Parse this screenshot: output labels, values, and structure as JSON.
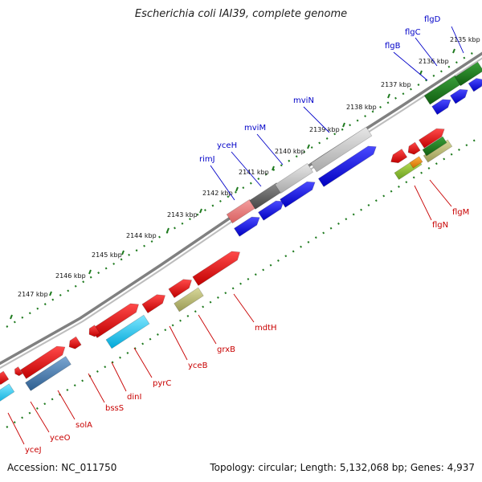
{
  "title": "Escherichia coli IAI39, complete genome",
  "footer": {
    "accession": "Accession: NC_011750",
    "summary": "Topology: circular; Length: 5,132,068 bp; Genes: 4,937"
  },
  "colors": {
    "label_top": "#0000c8",
    "label_bottom": "#c80000",
    "tick": "#1e7a1e",
    "backbone": "#808080"
  },
  "ticks": [
    "2135 kbp",
    "2136 kbp",
    "2137 kbp",
    "2138 kbp",
    "2139 kbp",
    "2140 kbp",
    "2141 kbp",
    "2142 kbp",
    "2143 kbp",
    "2144 kbp",
    "2145 kbp",
    "2146 kbp",
    "2147 kbp"
  ],
  "top_labels": [
    {
      "name": "flgD"
    },
    {
      "name": "flgC"
    },
    {
      "name": "flgB"
    },
    {
      "name": "mviN"
    },
    {
      "name": "mviM"
    },
    {
      "name": "yceH"
    },
    {
      "name": "rimJ"
    }
  ],
  "bottom_labels": [
    {
      "name": "flgM"
    },
    {
      "name": "flgN"
    },
    {
      "name": "mdtH"
    },
    {
      "name": "grxB"
    },
    {
      "name": "yceB"
    },
    {
      "name": "pyrC"
    },
    {
      "name": "dinI"
    },
    {
      "name": "bssS"
    },
    {
      "name": "solA"
    },
    {
      "name": "yceO"
    },
    {
      "name": "yceJ"
    }
  ]
}
